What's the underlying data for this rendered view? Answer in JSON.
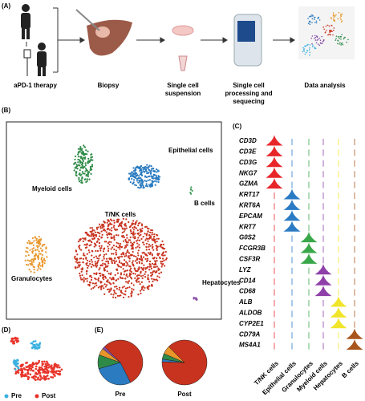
{
  "panel_a": {
    "label": "(A)",
    "steps": [
      "aPD-1 therapy",
      "Biopsy",
      "Single cell suspension",
      "Single cell processing and sequecing",
      "Data analysis"
    ]
  },
  "panel_b": {
    "label": "(B)",
    "clusters": [
      {
        "name": "T/NK cells",
        "color": "#c8331f"
      },
      {
        "name": "Epithelial cells",
        "color": "#2a7bc0"
      },
      {
        "name": "Granulocytes",
        "color": "#e8962a"
      },
      {
        "name": "Myeloid cells",
        "color": "#2e8b47"
      },
      {
        "name": "Hepatocytes",
        "color": "#8a4fa8"
      },
      {
        "name": "B cells",
        "color": "#3a9a5a"
      }
    ]
  },
  "panel_c": {
    "label": "(C)",
    "columns": [
      {
        "name": "T/NK cells",
        "color": "#e8262a"
      },
      {
        "name": "Epithelial cells",
        "color": "#2b7bc4"
      },
      {
        "name": "Granulocytes",
        "color": "#3aa84a"
      },
      {
        "name": "Myeloid cells",
        "color": "#8e3fa8"
      },
      {
        "name": "Hepatocytes",
        "color": "#f1e52a"
      },
      {
        "name": "B cells",
        "color": "#a8561c"
      }
    ],
    "genes": [
      {
        "name": "CD3D",
        "column": 0
      },
      {
        "name": "CD3E",
        "column": 0
      },
      {
        "name": "CD3G",
        "column": 0
      },
      {
        "name": "NKG7",
        "column": 0
      },
      {
        "name": "GZMA",
        "column": 0
      },
      {
        "name": "KRT17",
        "column": 1
      },
      {
        "name": "KRT6A",
        "column": 1
      },
      {
        "name": "EPCAM",
        "column": 1
      },
      {
        "name": "KRT7",
        "column": 1
      },
      {
        "name": "G0S2",
        "column": 2
      },
      {
        "name": "FCGR3B",
        "column": 2
      },
      {
        "name": "CSF3R",
        "column": 2
      },
      {
        "name": "LYZ",
        "column": 3
      },
      {
        "name": "CD14",
        "column": 3
      },
      {
        "name": "CD68",
        "column": 3
      },
      {
        "name": "ALB",
        "column": 4
      },
      {
        "name": "ALDOB",
        "column": 4
      },
      {
        "name": "CYP2E1",
        "column": 4
      },
      {
        "name": "CD79A",
        "column": 5
      },
      {
        "name": "MS4A1",
        "column": 5
      }
    ]
  },
  "panel_d": {
    "label": "(D)",
    "legend": [
      {
        "name": "Pre",
        "color": "#3ab0e0"
      },
      {
        "name": "Post",
        "color": "#e8342a"
      }
    ]
  },
  "panel_e": {
    "label": "(E)",
    "colors": [
      "#c8331f",
      "#2a7bc0",
      "#2e8b47",
      "#e8962a",
      "#8a4fa8"
    ],
    "pies": [
      {
        "name": "Pre",
        "values": [
          55,
          28,
          10,
          5,
          2
        ]
      },
      {
        "name": "Post",
        "values": [
          88,
          2,
          4,
          6
        ]
      }
    ]
  }
}
